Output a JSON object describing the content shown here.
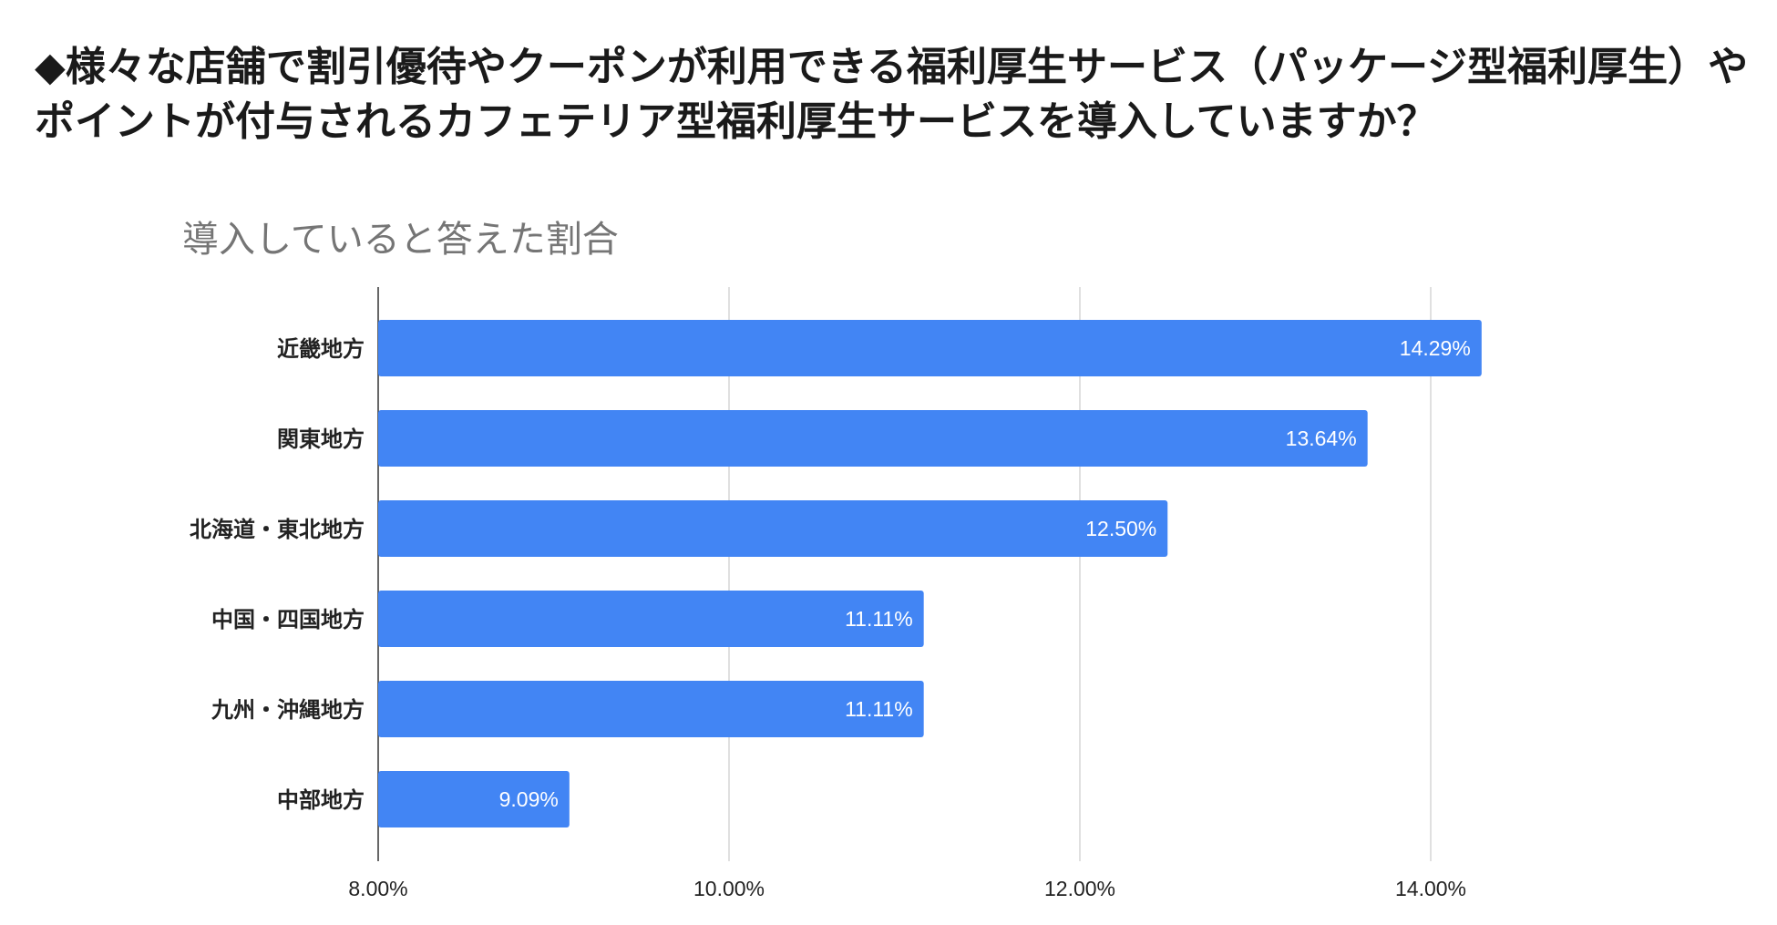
{
  "headline": {
    "line1": "◆様々な店舗で割引優待やクーポンが利用できる福利厚生サービス（パッケージ型福利厚生）や",
    "line2": "ポイントが付与されるカフェテリア型福利厚生サービスを導入していますか？"
  },
  "colors": {
    "bar": "#4285f4",
    "grid": "#cccccc",
    "axis": "#333333"
  },
  "chart_data": {
    "type": "bar",
    "orientation": "horizontal",
    "title": "導入していると答えた割合",
    "xlabel": "",
    "ylabel": "",
    "xlim": [
      8,
      14.5
    ],
    "grid": true,
    "legend": "none",
    "ticks": [
      {
        "value": 8,
        "label": "8.00%"
      },
      {
        "value": 10,
        "label": "10.00%"
      },
      {
        "value": 12,
        "label": "12.00%"
      },
      {
        "value": 14,
        "label": "14.00%"
      }
    ],
    "categories": [
      "近畿地方",
      "関東地方",
      "北海道・東北地方",
      "中国・四国地方",
      "九州・沖縄地方",
      "中部地方"
    ],
    "values": [
      14.29,
      13.64,
      12.5,
      11.11,
      11.11,
      9.09
    ],
    "data_labels": [
      "14.29%",
      "13.64%",
      "12.50%",
      "11.11%",
      "11.11%",
      "9.09%"
    ]
  }
}
